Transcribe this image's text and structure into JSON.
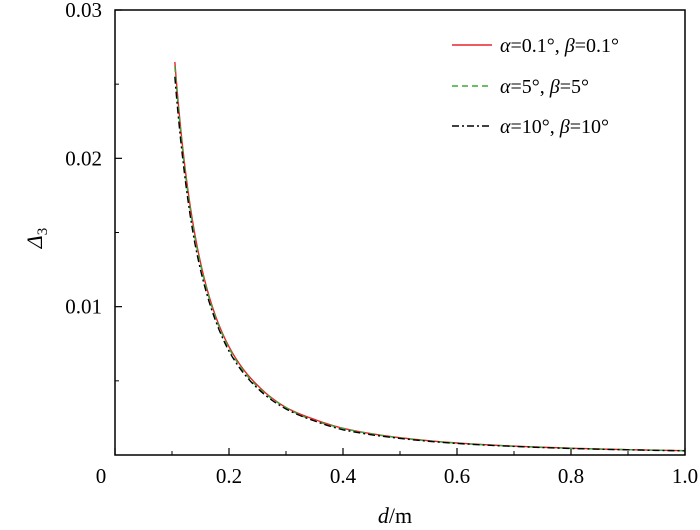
{
  "chart_data": {
    "type": "line",
    "xlabel": {
      "var": "d",
      "unit": "/m"
    },
    "ylabel": {
      "var": "Δ",
      "sub": "3"
    },
    "xlim": [
      0,
      1.0
    ],
    "ylim": [
      0,
      0.03
    ],
    "x_ticks": [
      0,
      0.2,
      0.4,
      0.6,
      0.8,
      1.0
    ],
    "x_tick_labels": [
      "0",
      "0.2",
      "0.4",
      "0.6",
      "0.8",
      "1.0"
    ],
    "y_ticks": [
      0.01,
      0.02,
      0.03
    ],
    "y_tick_labels": [
      "0.01",
      "0.02",
      "0.03"
    ],
    "grid": false,
    "legend_position": "top-right",
    "series": [
      {
        "name": "α=0.1°, β=0.1°",
        "color": "#e8242a",
        "dash": "solid",
        "x": [
          0.105,
          0.12,
          0.14,
          0.16,
          0.18,
          0.2,
          0.25,
          0.3,
          0.35,
          0.4,
          0.5,
          0.6,
          0.7,
          0.8,
          0.9,
          1.0
        ],
        "y": [
          0.0265,
          0.0203,
          0.0149,
          0.0114,
          0.009,
          0.0073,
          0.0047,
          0.0032,
          0.0024,
          0.0018,
          0.00117,
          0.00081,
          0.0006,
          0.00046,
          0.00036,
          0.00029
        ]
      },
      {
        "name": "α=5°, β=5°",
        "color": "#3aaa35",
        "dash": "dashed",
        "x": [
          0.105,
          0.12,
          0.14,
          0.16,
          0.18,
          0.2,
          0.25,
          0.3,
          0.35,
          0.4,
          0.5,
          0.6,
          0.7,
          0.8,
          0.9,
          1.0
        ],
        "y": [
          0.0262,
          0.0201,
          0.0147,
          0.0113,
          0.0089,
          0.0072,
          0.0046,
          0.0032,
          0.0023,
          0.0018,
          0.00115,
          0.0008,
          0.00059,
          0.00045,
          0.00036,
          0.00029
        ]
      },
      {
        "name": "α=10°, β=10°",
        "color": "#000000",
        "dash": "dashdot",
        "x": [
          0.105,
          0.12,
          0.14,
          0.16,
          0.18,
          0.2,
          0.25,
          0.3,
          0.35,
          0.4,
          0.5,
          0.6,
          0.7,
          0.8,
          0.9,
          1.0
        ],
        "y": [
          0.0255,
          0.0196,
          0.0143,
          0.011,
          0.0087,
          0.007,
          0.0045,
          0.0031,
          0.0023,
          0.0017,
          0.00112,
          0.00078,
          0.00058,
          0.00044,
          0.00035,
          0.00028
        ]
      }
    ]
  }
}
